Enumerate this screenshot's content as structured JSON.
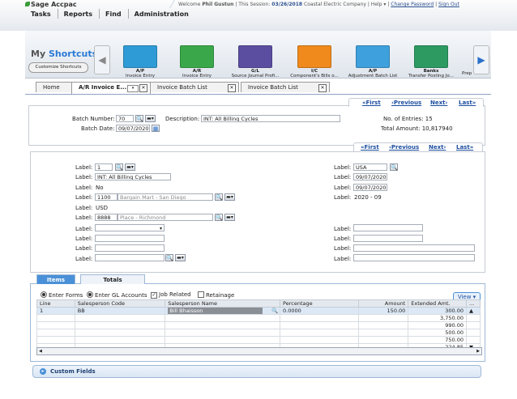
{
  "app": {
    "logo": "Sage Accpac",
    "welcome": "Welcome",
    "user": "Phil Gustun",
    "session_label": "| This Session:",
    "session_date": "03/26/2018",
    "company": "Coastal Electric Company",
    "help": "| Help ▾ |",
    "change_password": "Change Password",
    "signout": "Sign Out"
  },
  "menu": [
    "Tasks",
    "Reports",
    "Find",
    "Administration"
  ],
  "shortcuts": {
    "title_a": "My",
    "title_b": "Shortcuts",
    "customize": "Customize Shortcuts",
    "items": [
      {
        "label_top": "A/P",
        "label_bottom": "Invoice Entry",
        "color": "#2f9bd6"
      },
      {
        "label_top": "A/R",
        "label_bottom": "Invoice Entry",
        "color": "#3aa84a"
      },
      {
        "label_top": "G/L",
        "label_bottom": "Source Journal Profi...",
        "color": "#5b4ea0"
      },
      {
        "label_top": "I/C",
        "label_bottom": "Component's Bills o...",
        "color": "#f08a1c"
      },
      {
        "label_top": "A/P",
        "label_bottom": "Adjustment Batch List",
        "color": "#3ea0dc"
      },
      {
        "label_top": "Banks",
        "label_bottom": "Transfer Posting Jo...",
        "color": "#2d9a62"
      }
    ],
    "trailing": "Prep"
  },
  "tabs": [
    "Home",
    "A/R Invoice E...",
    "Invoice Batch List",
    "Invoice Batch List"
  ],
  "pager": {
    "first": "«First",
    "prev": "‹Previous",
    "next": "Next›",
    "last": "Last»"
  },
  "batch": {
    "number_label": "Batch Number:",
    "number_value": "70",
    "desc_label": "Description:",
    "desc_value": "INT: All Billing Cycles",
    "date_label": "Batch Date:",
    "date_value": "09/07/2020",
    "entries_label": "No. of Entries:",
    "entries_value": "15",
    "total_label": "Total Amount:",
    "total_value": "10,817940"
  },
  "fields": {
    "label": "Label:",
    "left": [
      "1",
      "INT: All Billing Cycles",
      "No",
      "1100",
      "USD",
      "8888"
    ],
    "left_desc_1100": "Bargain Mart - San Diego",
    "left_desc_8888": "Place - Richmond",
    "right": [
      "USA",
      "09/07/2020",
      "09/07/2020",
      "2020 - 09"
    ]
  },
  "items_tabs": [
    "Items",
    "Totals"
  ],
  "options": {
    "enter_forms": "Enter Forms",
    "enter_gl": "Enter GL Accounts",
    "job_related": "Job Related",
    "retainage": "Retainage",
    "view": "View"
  },
  "grid": {
    "headers": [
      "Line",
      "Salesperson Code",
      "Salesperson Name",
      "Percentage",
      "Amount",
      "Extended Amt.",
      "..."
    ],
    "rows": [
      {
        "line": "1",
        "code": "BB",
        "name": "Bill Bhaisson",
        "pct": "0.0000",
        "amount": "150.00",
        "ext": "300.00"
      },
      {
        "line": "",
        "code": "",
        "name": "",
        "pct": "",
        "amount": "",
        "ext": "3,750.00"
      },
      {
        "line": "",
        "code": "",
        "name": "",
        "pct": "",
        "amount": "",
        "ext": "990.00"
      },
      {
        "line": "",
        "code": "",
        "name": "",
        "pct": "",
        "amount": "",
        "ext": "500.00"
      },
      {
        "line": "",
        "code": "",
        "name": "",
        "pct": "",
        "amount": "",
        "ext": "750.00"
      },
      {
        "line": "",
        "code": "",
        "name": "",
        "pct": "",
        "amount": "",
        "ext": "224.85"
      }
    ]
  },
  "custom_fields": "Custom Fields"
}
